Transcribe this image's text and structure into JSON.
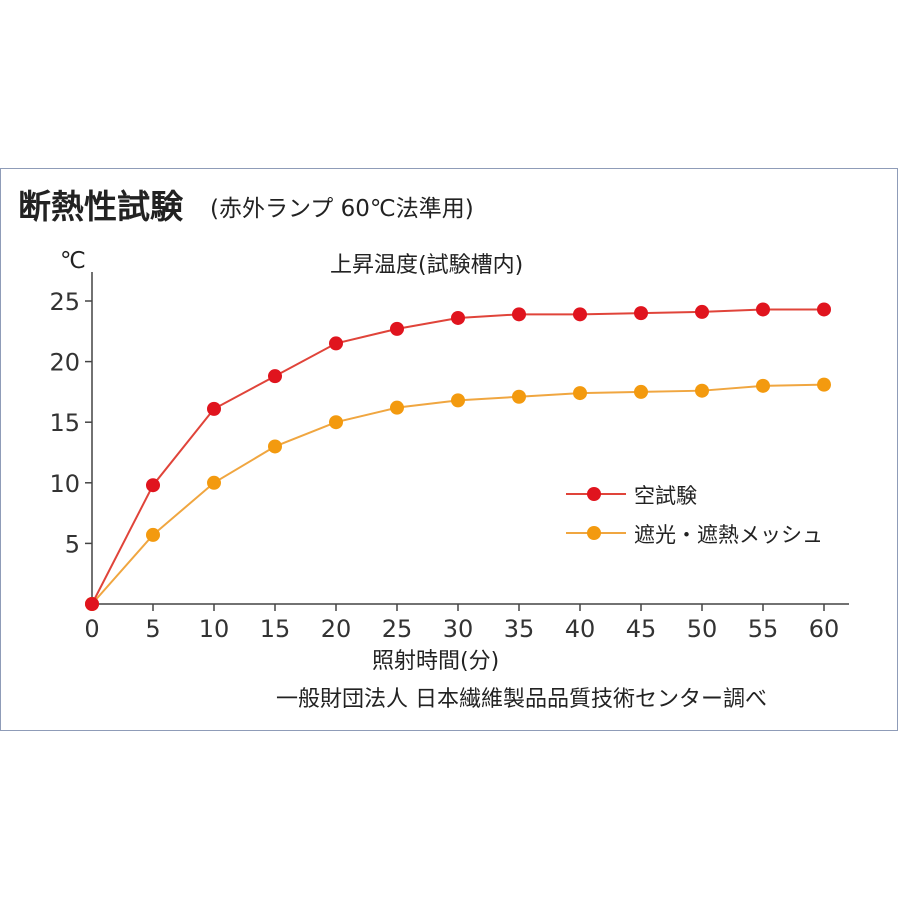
{
  "chart_data": {
    "type": "line",
    "title": "断熱性試験",
    "subtitle": "(赤外ランプ 60℃法準用)",
    "inner_title": "上昇温度(試験槽内)",
    "xlabel": "照射時間(分)",
    "ylabel": "℃",
    "source": "一般財団法人 日本繊維製品品質技術センター調べ",
    "x": [
      0,
      5,
      10,
      15,
      20,
      25,
      30,
      35,
      40,
      45,
      50,
      55,
      60
    ],
    "xlim": [
      0,
      60
    ],
    "ylim": [
      0,
      25
    ],
    "xticks": [
      "0",
      "5",
      "10",
      "15",
      "20",
      "25",
      "30",
      "35",
      "40",
      "45",
      "50",
      "55",
      "60"
    ],
    "yticks": [
      "5",
      "10",
      "15",
      "20",
      "25"
    ],
    "grid": false,
    "legend_position": "center-right",
    "series": [
      {
        "name": "空試験",
        "color": "#e0141e",
        "line_color": "#e0443a",
        "values": [
          0,
          9.8,
          16.1,
          18.8,
          21.5,
          22.7,
          23.6,
          23.9,
          23.9,
          24.0,
          24.1,
          24.3,
          24.3
        ]
      },
      {
        "name": "遮光・遮熱メッシュ",
        "color": "#f39a0f",
        "line_color": "#f0a640",
        "values": [
          0,
          5.7,
          10.0,
          13.0,
          15.0,
          16.2,
          16.8,
          17.1,
          17.4,
          17.5,
          17.6,
          18.0,
          18.1
        ]
      }
    ]
  }
}
